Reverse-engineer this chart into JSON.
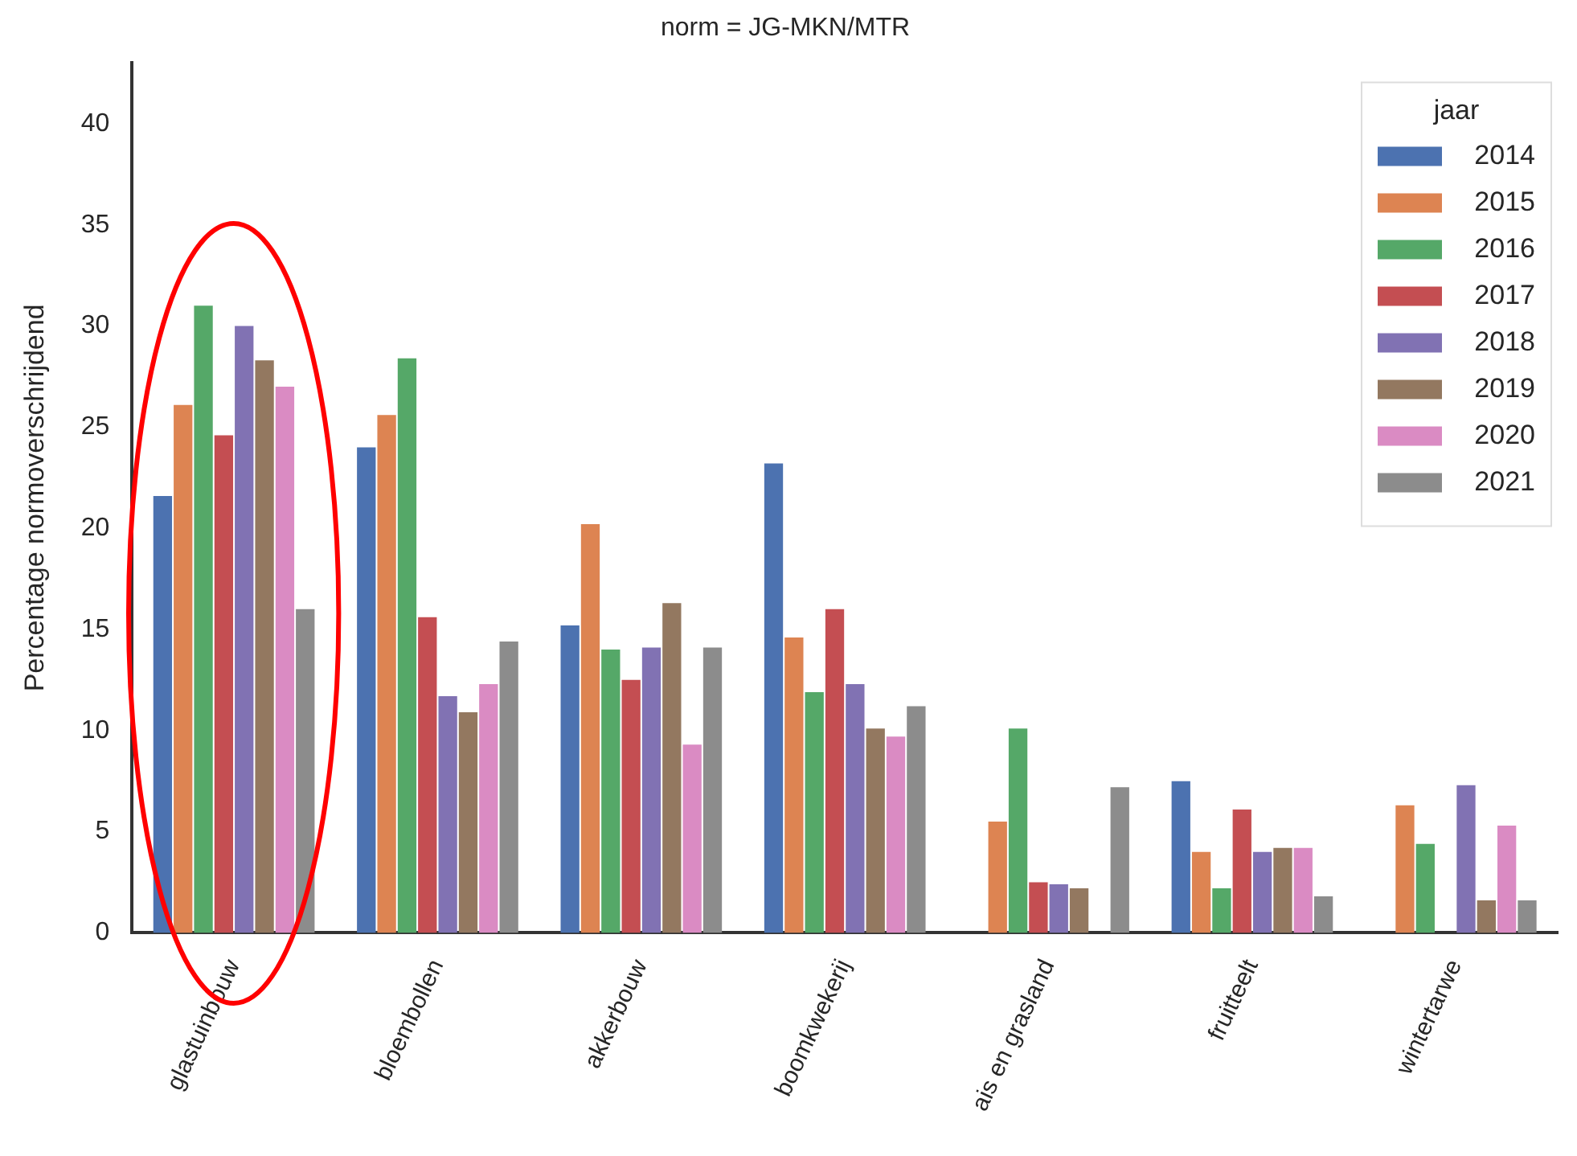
{
  "chart_data": {
    "type": "bar",
    "title": "norm = JG-MKN/MTR",
    "ylabel": "Percentage normoverschrijdend",
    "legend_title": "jaar",
    "categories": [
      "glastuinbouw",
      "bloembollen",
      "akkerbouw",
      "boomkwekerij",
      "ais en grasland",
      "fruitteelt",
      "wintertarwe"
    ],
    "series": [
      {
        "name": "2014",
        "color": "#4c72b0",
        "values": [
          21.6,
          24.0,
          15.2,
          23.2,
          null,
          7.5,
          null
        ]
      },
      {
        "name": "2015",
        "color": "#dd8452",
        "values": [
          26.1,
          25.6,
          20.2,
          14.6,
          5.5,
          4.0,
          6.3
        ]
      },
      {
        "name": "2016",
        "color": "#55a868",
        "values": [
          31.0,
          28.4,
          14.0,
          11.9,
          10.1,
          2.2,
          4.4
        ]
      },
      {
        "name": "2017",
        "color": "#c44e52",
        "values": [
          24.6,
          15.6,
          12.5,
          16.0,
          2.5,
          6.1,
          null
        ]
      },
      {
        "name": "2018",
        "color": "#8172b3",
        "values": [
          30.0,
          11.7,
          14.1,
          12.3,
          2.4,
          4.0,
          7.3
        ]
      },
      {
        "name": "2019",
        "color": "#937860",
        "values": [
          28.3,
          10.9,
          16.3,
          10.1,
          2.2,
          4.2,
          1.6
        ]
      },
      {
        "name": "2020",
        "color": "#da8bc3",
        "values": [
          27.0,
          12.3,
          9.3,
          9.7,
          null,
          4.2,
          5.3
        ]
      },
      {
        "name": "2021",
        "color": "#8c8c8c",
        "values": [
          16.0,
          14.4,
          14.1,
          11.2,
          7.2,
          1.8,
          1.6
        ]
      }
    ],
    "ylim": [
      0,
      43
    ],
    "yticks": [
      0,
      5,
      10,
      15,
      20,
      25,
      30,
      35,
      40
    ],
    "grid": false,
    "legend": "top right"
  }
}
